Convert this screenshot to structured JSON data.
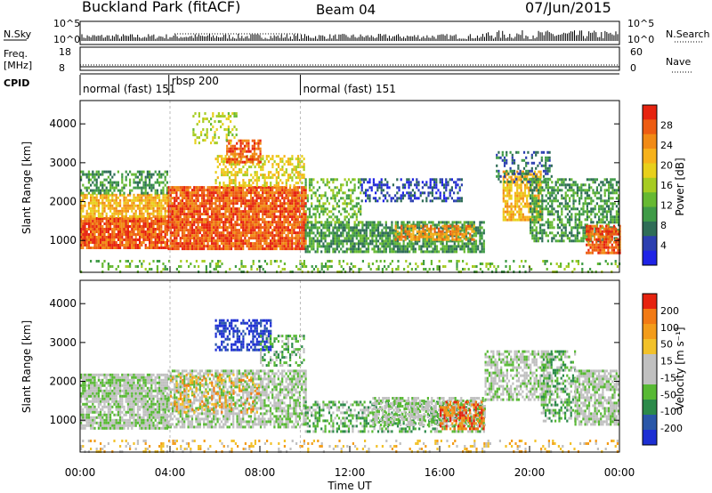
{
  "header": {
    "station": "Buckland Park (fitACF)",
    "beam": "Beam 04",
    "date": "07/Jun/2015"
  },
  "chart_data": [
    {
      "type": "line",
      "panel": "noise",
      "left_label": "N.Sky",
      "right_label": "N.Search",
      "left_ticks": [
        "10^5",
        "10^0"
      ],
      "right_ticks": [
        "10^5",
        "10^0"
      ]
    },
    {
      "type": "line",
      "panel": "frequency-nave",
      "left_label_line1": "Freq.",
      "left_label_line2": "[MHz]",
      "right_label": "Nave",
      "left_ticks": [
        "18",
        "8"
      ],
      "right_ticks": [
        "60",
        "0"
      ]
    },
    {
      "type": "table",
      "panel": "cpid",
      "label": "CPID",
      "segments": [
        {
          "start_h": 0.0,
          "end_h": 3.95,
          "name": "normal (fast) 151"
        },
        {
          "start_h": 3.95,
          "end_h": 9.8,
          "name": "rbsp 200"
        },
        {
          "start_h": 9.8,
          "end_h": 24.0,
          "name": "normal (fast) 151"
        }
      ]
    },
    {
      "type": "heatmap",
      "panel": "power",
      "ylabel": "Slant Range [km]",
      "ylim": [
        180,
        4600
      ],
      "yticks": [
        1000,
        2000,
        3000,
        4000
      ],
      "colorbar_label": "Power [dB]",
      "colorbar_ticks": [
        "28",
        "24",
        "20",
        "16",
        "12",
        "8",
        "4"
      ],
      "colors": [
        "#1f23e6",
        "#2c3fb0",
        "#2f6d57",
        "#3f9b47",
        "#66b932",
        "#a6cc22",
        "#e8d01c",
        "#f7b21b",
        "#f18a15",
        "#ed5c12",
        "#e6230f"
      ],
      "regions": [
        {
          "t0": 0.0,
          "t1": 3.9,
          "r0": 800,
          "r1": 1600,
          "level": 9,
          "density": 0.9
        },
        {
          "t0": 0.0,
          "t1": 3.9,
          "r0": 1600,
          "r1": 2200,
          "level": 7,
          "density": 0.8
        },
        {
          "t0": 0.0,
          "t1": 3.9,
          "r0": 2200,
          "r1": 2800,
          "level": 3,
          "density": 0.55
        },
        {
          "t0": 3.9,
          "t1": 10.0,
          "r0": 800,
          "r1": 2400,
          "level": 9,
          "density": 0.9
        },
        {
          "t0": 6.0,
          "t1": 10.0,
          "r0": 2400,
          "r1": 3200,
          "level": 6,
          "density": 0.5
        },
        {
          "t0": 6.5,
          "t1": 8.0,
          "r0": 3000,
          "r1": 3600,
          "level": 9,
          "density": 0.7
        },
        {
          "t0": 5.0,
          "t1": 7.0,
          "r0": 3500,
          "r1": 4300,
          "level": 5,
          "density": 0.3
        },
        {
          "t0": 10.0,
          "t1": 18.0,
          "r0": 700,
          "r1": 1500,
          "level": 3,
          "density": 0.75
        },
        {
          "t0": 10.0,
          "t1": 12.5,
          "r0": 1500,
          "r1": 2600,
          "level": 4,
          "density": 0.45
        },
        {
          "t0": 12.5,
          "t1": 17.0,
          "r0": 2000,
          "r1": 2600,
          "level": 1,
          "density": 0.45
        },
        {
          "t0": 14.0,
          "t1": 17.5,
          "r0": 1000,
          "r1": 1400,
          "level": 8,
          "density": 0.6
        },
        {
          "t0": 18.8,
          "t1": 20.5,
          "r0": 1500,
          "r1": 2800,
          "level": 7,
          "density": 0.7
        },
        {
          "t0": 18.5,
          "t1": 21.0,
          "r0": 2500,
          "r1": 3300,
          "level": 2,
          "density": 0.4
        },
        {
          "t0": 20.0,
          "t1": 24.0,
          "r0": 1000,
          "r1": 2600,
          "level": 3,
          "density": 0.55
        },
        {
          "t0": 22.5,
          "t1": 24.0,
          "r0": 700,
          "r1": 1400,
          "level": 9,
          "density": 0.85
        },
        {
          "t0": 0.0,
          "t1": 24.0,
          "r0": 200,
          "r1": 500,
          "level": 4,
          "density": 0.25
        }
      ]
    },
    {
      "type": "heatmap",
      "panel": "velocity",
      "ylabel": "Slant Range [km]",
      "ylim": [
        180,
        4600
      ],
      "yticks": [
        1000,
        2000,
        3000,
        4000
      ],
      "xlabel": "Time UT",
      "xticks": [
        "00:00",
        "04:00",
        "08:00",
        "12:00",
        "16:00",
        "20:00",
        "00:00"
      ],
      "colorbar_label": "Velocity [m s⁻¹]",
      "colorbar_ticks": [
        "200",
        "100",
        "50",
        "15",
        "-15",
        "-50",
        "-100",
        "-200"
      ],
      "colors": [
        "#1d2fd3",
        "#2a57a8",
        "#2c8a4a",
        "#58b934",
        "#c0c0c0",
        "#c0c0c0",
        "#f2c12a",
        "#f39c1a",
        "#f27a14",
        "#e6230f"
      ],
      "regions": [
        {
          "t0": 0.0,
          "t1": 3.9,
          "r0": 800,
          "r1": 2200,
          "level": 4,
          "density": 0.85
        },
        {
          "t0": 3.9,
          "t1": 10.0,
          "r0": 800,
          "r1": 2300,
          "level": 4,
          "density": 0.7
        },
        {
          "t0": 4.0,
          "t1": 8.0,
          "r0": 1200,
          "r1": 2200,
          "level": 7,
          "density": 0.25
        },
        {
          "t0": 6.0,
          "t1": 8.5,
          "r0": 2800,
          "r1": 3600,
          "level": 0,
          "density": 0.55
        },
        {
          "t0": 8.0,
          "t1": 10.0,
          "r0": 2400,
          "r1": 3200,
          "level": 3,
          "density": 0.45
        },
        {
          "t0": 10.0,
          "t1": 18.0,
          "r0": 700,
          "r1": 1500,
          "level": 3,
          "density": 0.5
        },
        {
          "t0": 13.0,
          "t1": 18.0,
          "r0": 900,
          "r1": 1600,
          "level": 4,
          "density": 0.6
        },
        {
          "t0": 16.0,
          "t1": 18.0,
          "r0": 800,
          "r1": 1500,
          "level": 8,
          "density": 0.55
        },
        {
          "t0": 18.0,
          "t1": 21.0,
          "r0": 1500,
          "r1": 2800,
          "level": 4,
          "density": 0.6
        },
        {
          "t0": 20.5,
          "t1": 22.0,
          "r0": 1000,
          "r1": 2800,
          "level": 3,
          "density": 0.5
        },
        {
          "t0": 22.0,
          "t1": 24.0,
          "r0": 900,
          "r1": 2300,
          "level": 4,
          "density": 0.75
        },
        {
          "t0": 0.0,
          "t1": 24.0,
          "r0": 200,
          "r1": 500,
          "level": 6,
          "density": 0.2
        }
      ]
    }
  ]
}
